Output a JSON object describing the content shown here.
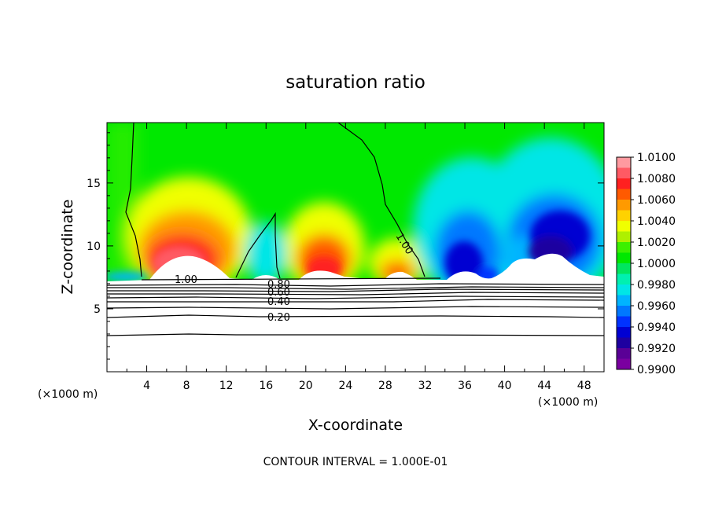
{
  "chart_data": {
    "type": "heatmap",
    "title": "saturation ratio",
    "xlabel": "X-coordinate",
    "ylabel": "Z-coordinate",
    "x_unit": "(×1000 m)",
    "y_unit": "(×1000 m)",
    "xlim": [
      0,
      50
    ],
    "ylim": [
      0,
      19.8
    ],
    "x_ticks": [
      4,
      8,
      12,
      16,
      20,
      24,
      28,
      32,
      36,
      40,
      44,
      48
    ],
    "y_ticks": [
      5,
      10,
      15
    ],
    "footer": "CONTOUR INTERVAL = 1.000E-01",
    "colorbar": {
      "min": 0.99,
      "max": 1.01,
      "labels": [
        "1.0100",
        "1.0080",
        "1.0060",
        "1.0040",
        "1.0020",
        "1.0000",
        "0.9980",
        "0.9960",
        "0.9940",
        "0.9920",
        "0.9900"
      ],
      "colors": [
        "#ff9aa0",
        "#ff5a64",
        "#ff2020",
        "#ff5a00",
        "#ff9a00",
        "#ffd200",
        "#f0ff00",
        "#aef000",
        "#3cf000",
        "#00e800",
        "#00e660",
        "#00f0b0",
        "#00e6e6",
        "#00b4ff",
        "#0078ff",
        "#0032ff",
        "#0000d2",
        "#1e00a0",
        "#5a0096",
        "#7a00a0"
      ]
    },
    "contour_labels": [
      {
        "text": "1.00"
      },
      {
        "text": "1.00"
      },
      {
        "text": "0.80"
      },
      {
        "text": "0.60"
      },
      {
        "text": "0.40"
      },
      {
        "text": "0.20"
      }
    ]
  }
}
